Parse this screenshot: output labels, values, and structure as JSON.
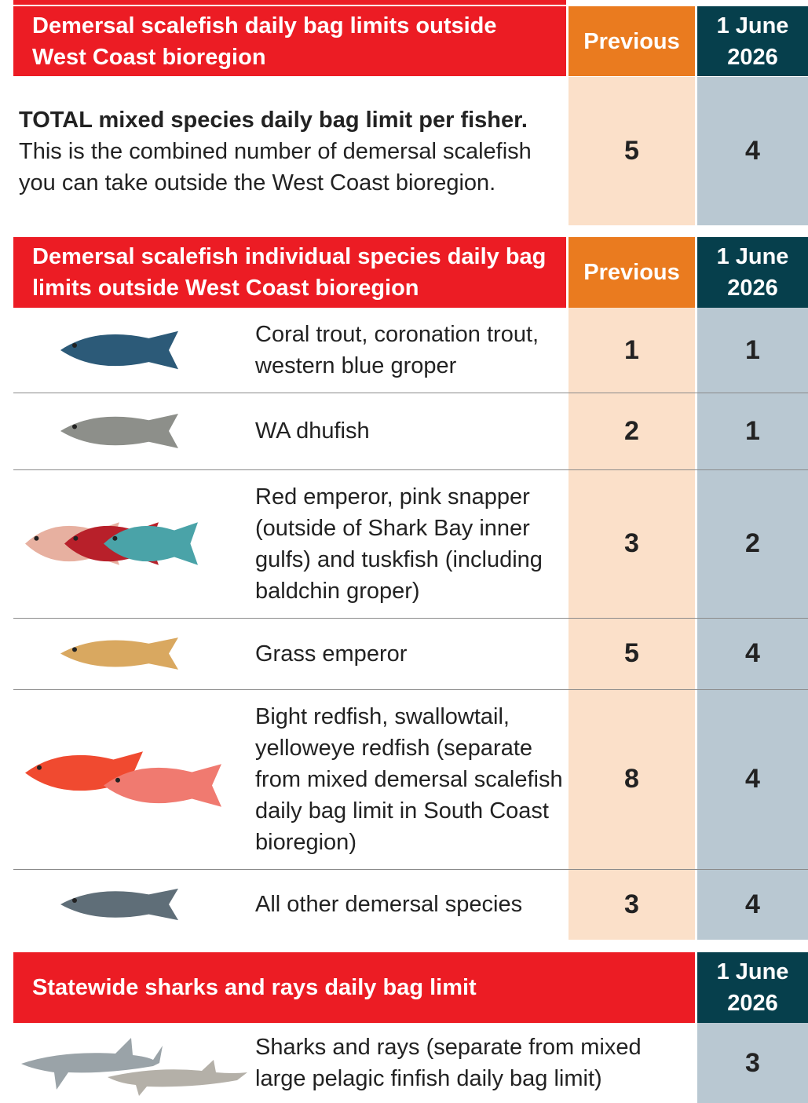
{
  "top_table": {
    "title": "Demersal scalefish daily bag limits outside West Coast bioregion",
    "col_previous": "Previous",
    "col_new": "1 June 2026",
    "row": {
      "label_bold": "TOTAL mixed species daily bag limit per fisher.",
      "label": "This is the combined number of demersal scalefish you can take outside the West Coast bioregion.",
      "previous": 5,
      "new": 4
    }
  },
  "species_table": {
    "title": "Demersal scalefish individual species daily bag limits outside West Coast bioregion",
    "col_previous": "Previous",
    "col_new": "1 June 2026",
    "rows": [
      {
        "label": "Coral trout, coronation trout, western blue groper",
        "previous": 1,
        "new": 1
      },
      {
        "label": "WA dhufish",
        "previous": 2,
        "new": 1
      },
      {
        "label": "Red emperor, pink snapper (outside of Shark Bay inner gulfs) and tuskfish (including baldchin groper)",
        "previous": 3,
        "new": 2
      },
      {
        "label": "Grass emperor",
        "previous": 5,
        "new": 4
      },
      {
        "label": "Bight redfish, swallowtail, yelloweye redfish (separate from mixed demersal scalefish daily bag limit in South Coast bioregion)",
        "previous": 8,
        "new": 4
      },
      {
        "label": "All other demersal species",
        "previous": 3,
        "new": 4
      }
    ]
  },
  "sharks_table": {
    "title": "Statewide sharks and rays daily bag limit",
    "col_new": "1 June 2026",
    "row": {
      "label": "Sharks and rays (separate from mixed large pelagic finfish daily bag limit)",
      "new": 3
    }
  }
}
